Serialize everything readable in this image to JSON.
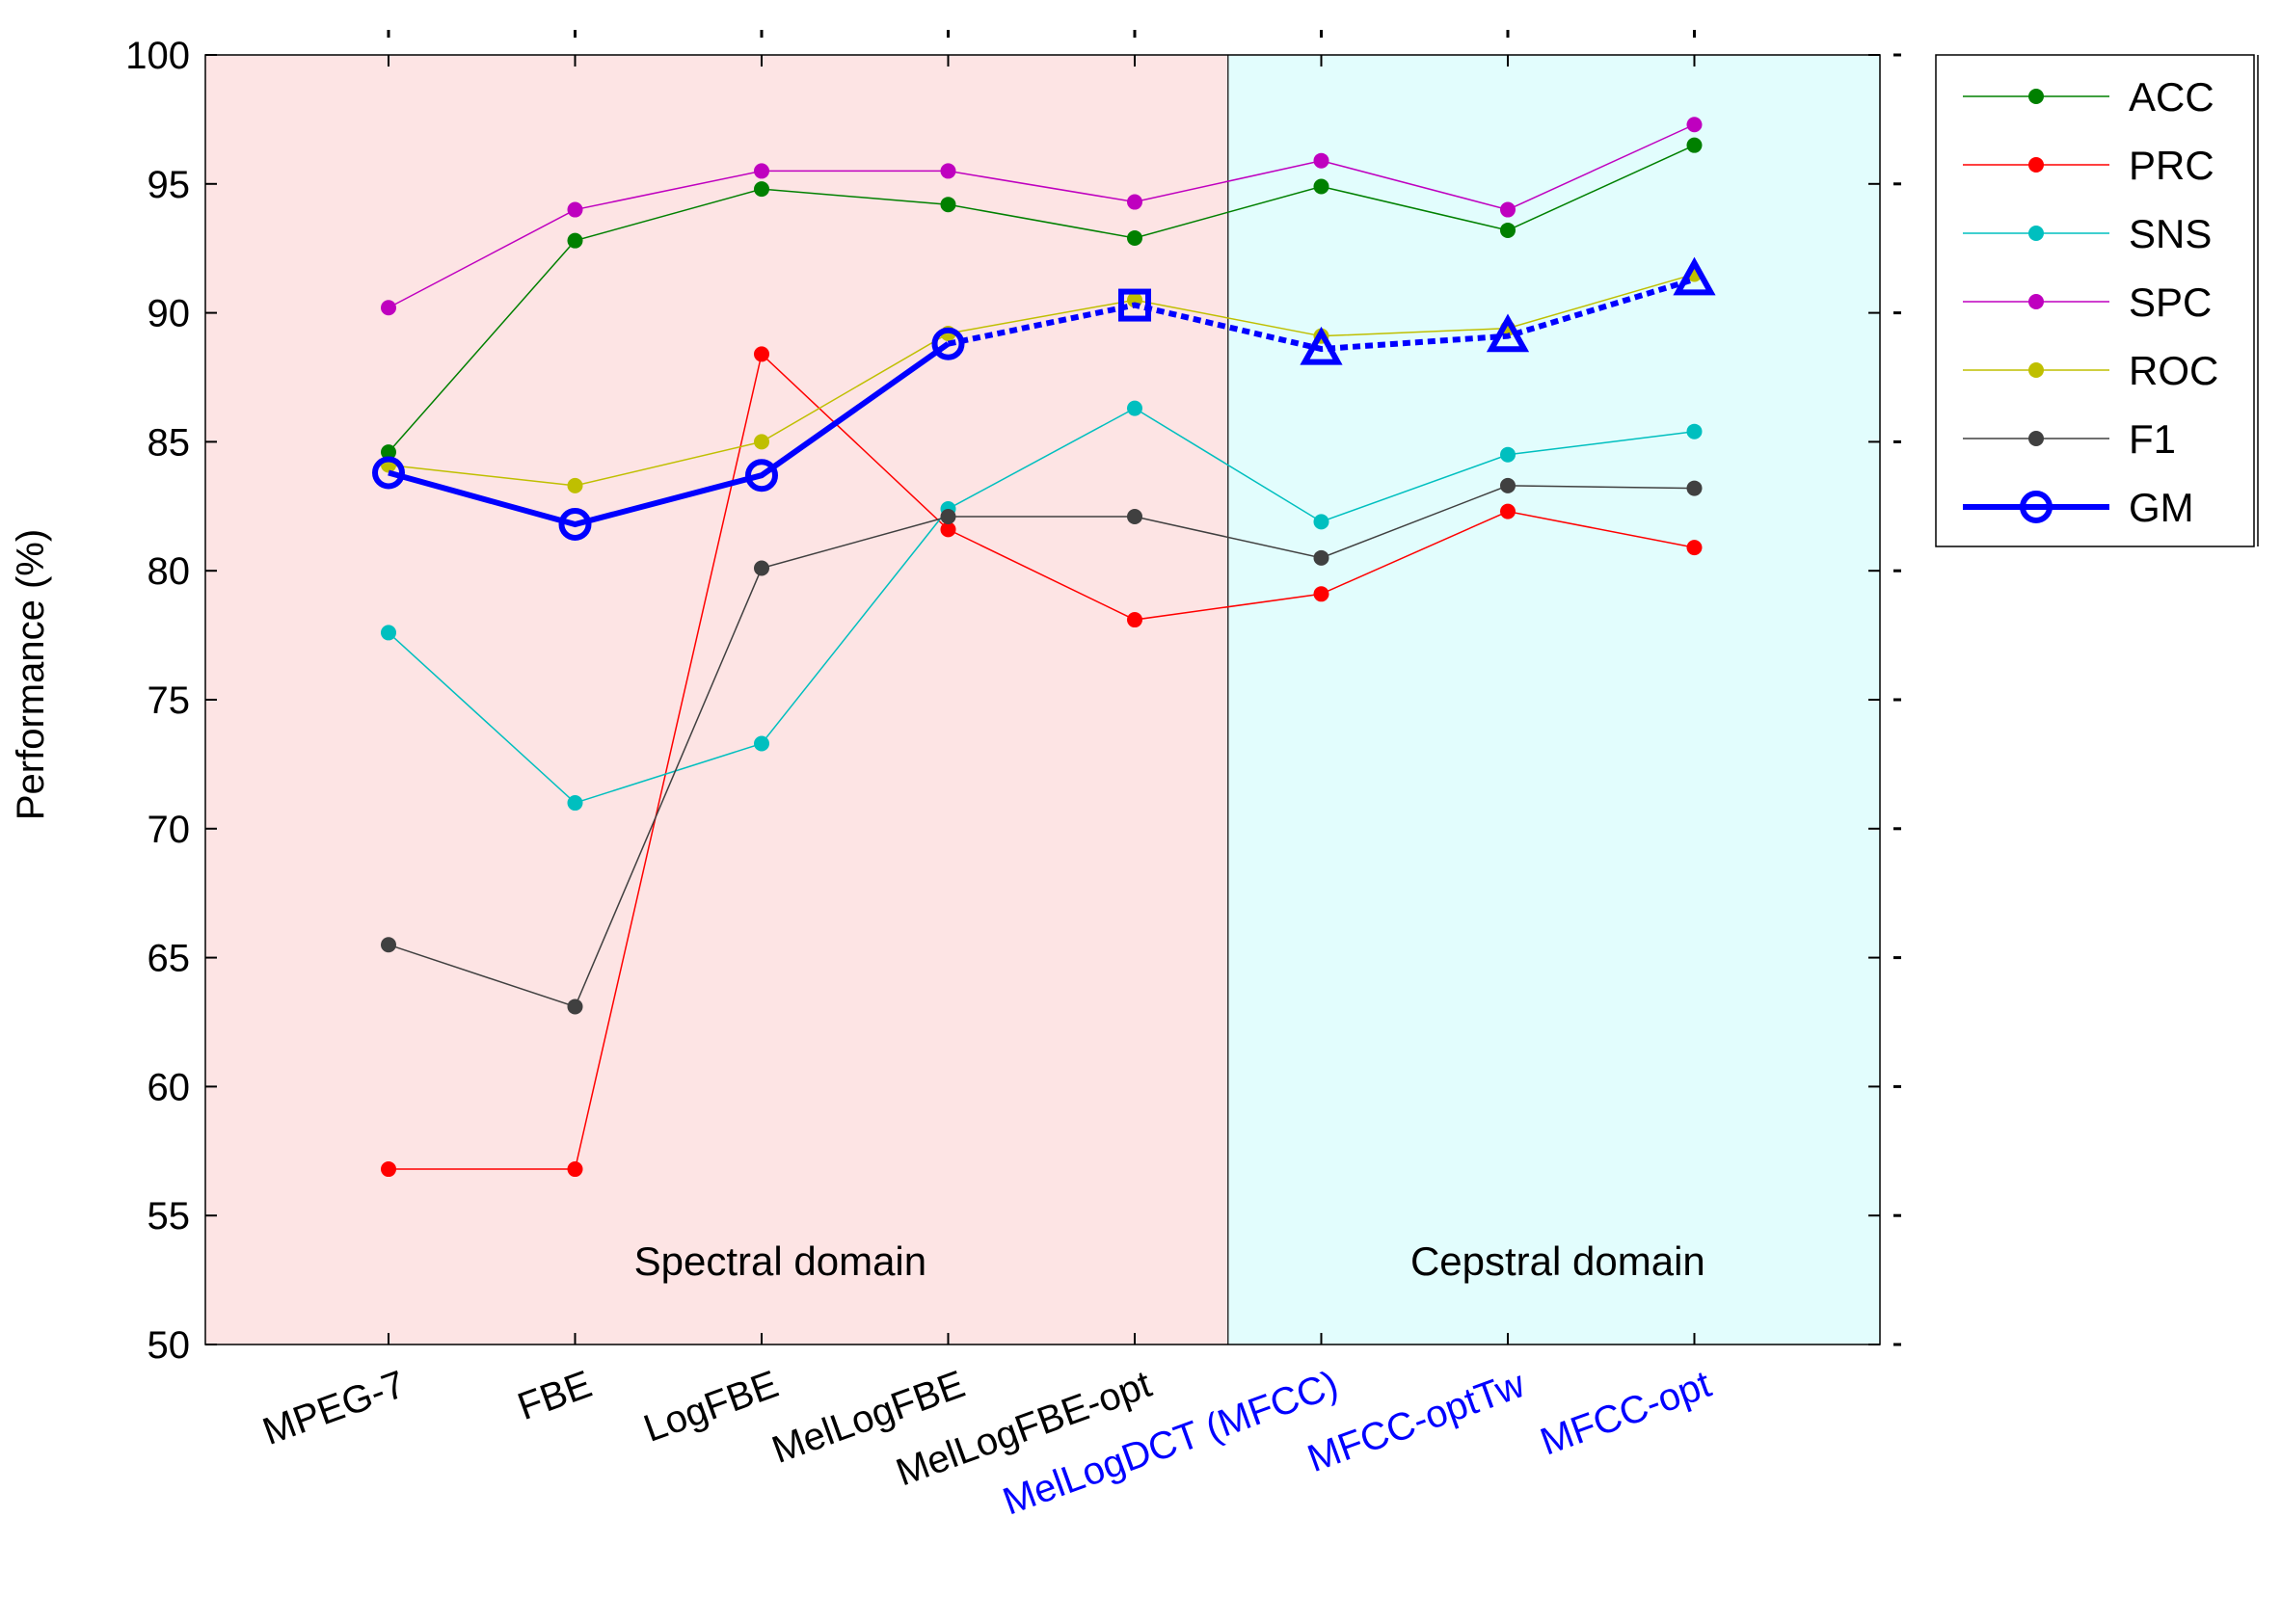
{
  "chart_data": {
    "type": "line",
    "title": "",
    "xlabel": "",
    "ylabel": "Performance (%)",
    "ylim": [
      50,
      100
    ],
    "yticks": [
      50,
      55,
      60,
      65,
      70,
      75,
      80,
      85,
      90,
      95,
      100
    ],
    "categories": [
      "MPEG-7",
      "FBE",
      "LogFBE",
      "MelLogFBE",
      "MelLogFBE-opt",
      "MelLogDCT (MFCC)",
      "MFCC-optTw",
      "MFCC-opt"
    ],
    "category_colors": [
      "#000000",
      "#000000",
      "#000000",
      "#000000",
      "#000000",
      "#0000ff",
      "#0000ff",
      "#0000ff"
    ],
    "regions": [
      {
        "label": "Spectral domain",
        "from_index": 0,
        "to_index": 4,
        "color": "#fde4e4"
      },
      {
        "label": "Cepstral domain",
        "from_index": 5,
        "to_index": 7,
        "color": "#e2fdfd"
      }
    ],
    "legend_position": "outside-right-top",
    "series": [
      {
        "name": "ACC",
        "color": "#008000",
        "values": [
          84.6,
          92.8,
          94.8,
          94.2,
          92.9,
          94.9,
          93.2,
          96.5
        ]
      },
      {
        "name": "PRC",
        "color": "#ff0000",
        "values": [
          56.8,
          56.8,
          88.4,
          81.6,
          78.1,
          79.1,
          82.3,
          80.9
        ]
      },
      {
        "name": "SNS",
        "color": "#00bfbf",
        "values": [
          77.6,
          71.0,
          73.3,
          82.4,
          86.3,
          81.9,
          84.5,
          85.4
        ]
      },
      {
        "name": "SPC",
        "color": "#bf00bf",
        "values": [
          90.2,
          94.0,
          95.5,
          95.5,
          94.3,
          95.9,
          94.0,
          97.3
        ]
      },
      {
        "name": "ROC",
        "color": "#bfbf00",
        "values": [
          84.1,
          83.3,
          85.0,
          89.2,
          90.5,
          89.1,
          89.4,
          91.5
        ]
      },
      {
        "name": "F1",
        "color": "#404040",
        "values": [
          65.5,
          63.1,
          80.1,
          82.1,
          82.1,
          80.5,
          83.3,
          83.2
        ]
      },
      {
        "name": "GM",
        "color": "#0000ff",
        "values": [
          83.8,
          81.8,
          83.7,
          88.8,
          90.3,
          88.6,
          89.1,
          91.3
        ],
        "markers": [
          "circle",
          "circle",
          "circle",
          "circle",
          "square",
          "triangle",
          "triangle",
          "triangle"
        ],
        "solid_until_index": 3
      }
    ]
  }
}
